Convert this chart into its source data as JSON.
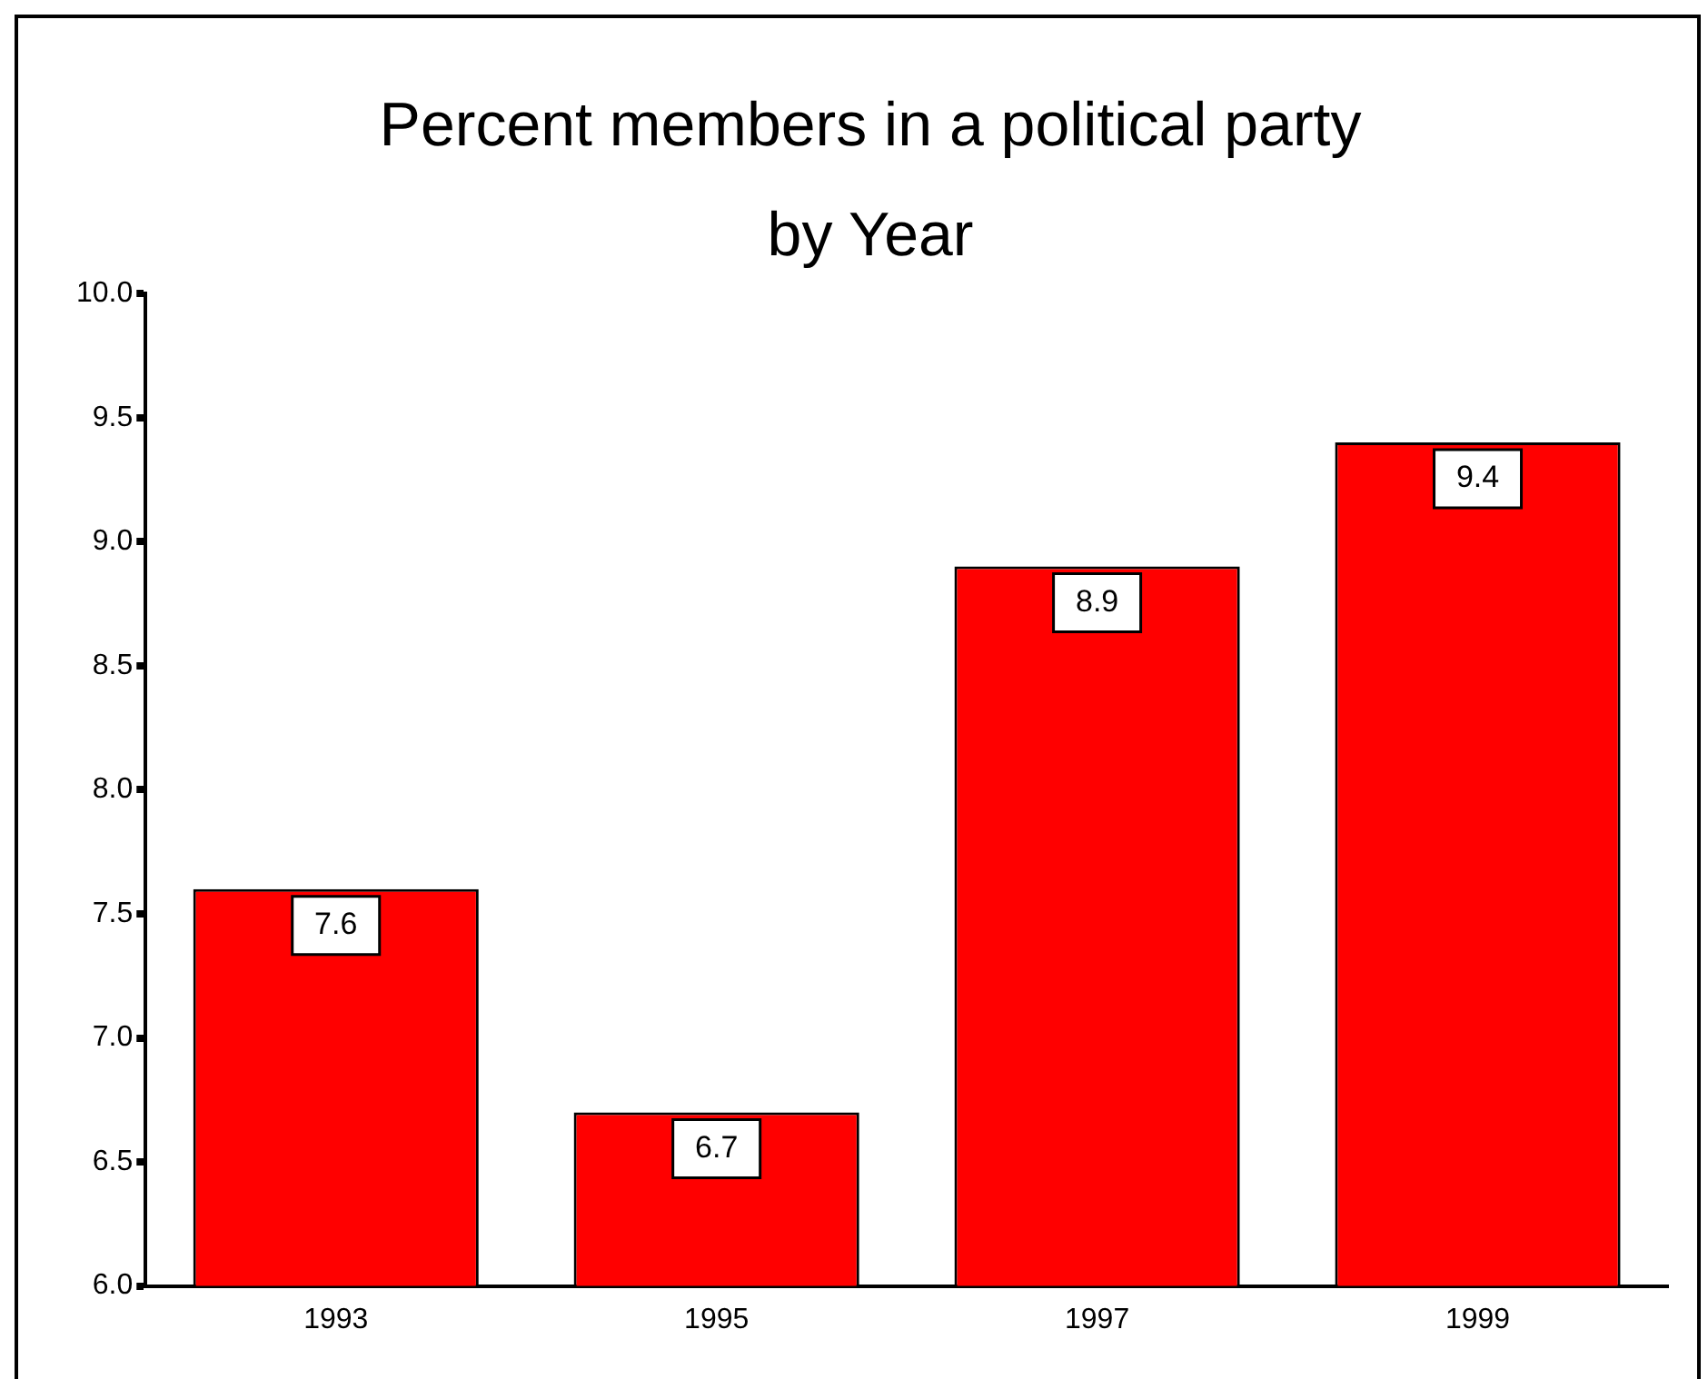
{
  "chart_data": {
    "type": "bar",
    "title": "Percent members in a political party",
    "subtitle": "by Year",
    "categories": [
      "1993",
      "1995",
      "1997",
      "1999"
    ],
    "values": [
      7.6,
      6.7,
      8.9,
      9.4
    ],
    "color": "#ff0000",
    "ylim": [
      6,
      10
    ],
    "yticks": [
      {
        "value": 6,
        "label": "6.0"
      },
      6.5,
      {
        "value": 7,
        "label": "7.0"
      },
      7.5,
      {
        "value": 8,
        "label": "8.0"
      },
      8.5,
      {
        "value": 9,
        "label": "9.0"
      },
      9.5,
      {
        "value": 10,
        "label": "10.0"
      }
    ],
    "grid": false,
    "legend": false,
    "data_labels": true
  }
}
